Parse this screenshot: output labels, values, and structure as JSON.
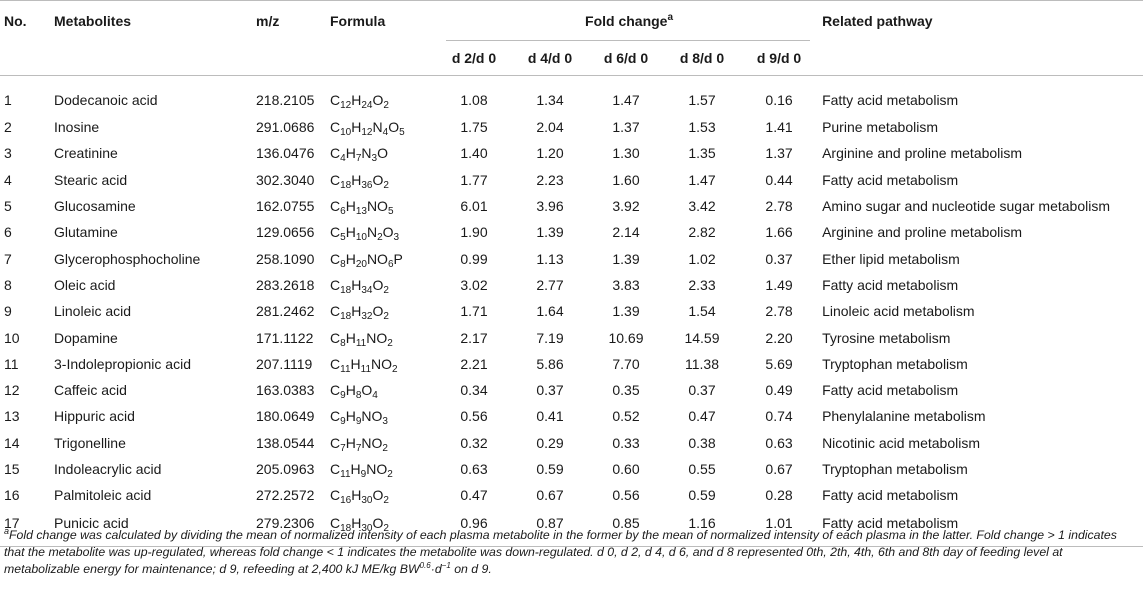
{
  "headers": {
    "no": "No.",
    "metabolites": "Metabolites",
    "mz": "m/z",
    "formula": "Formula",
    "fold_change": "Fold change",
    "fold_change_mark": "a",
    "pathway": "Related pathway",
    "sub": [
      "d 2/d 0",
      "d 4/d 0",
      "d 6/d 0",
      "d 8/d 0",
      "d 9/d 0"
    ]
  },
  "rows": [
    {
      "no": "1",
      "name": "Dodecanoic acid",
      "mz": "218.2105",
      "formula": [
        [
          "C",
          ""
        ],
        [
          "H",
          ""
        ],
        [
          "O",
          ""
        ]
      ],
      "formula_sub": [
        "12",
        "24",
        "2"
      ],
      "values": [
        "1.08",
        "1.34",
        "1.47",
        "1.57",
        "0.16"
      ],
      "pathway": "Fatty acid metabolism"
    },
    {
      "no": "2",
      "name": "Inosine",
      "mz": "291.0686",
      "formula": [
        [
          "C",
          ""
        ],
        [
          "H",
          ""
        ],
        [
          "N",
          ""
        ],
        [
          "O",
          ""
        ]
      ],
      "formula_sub": [
        "10",
        "12",
        "4",
        "5"
      ],
      "values": [
        "1.75",
        "2.04",
        "1.37",
        "1.53",
        "1.41"
      ],
      "pathway": "Purine metabolism"
    },
    {
      "no": "3",
      "name": "Creatinine",
      "mz": "136.0476",
      "formula": [
        [
          "C",
          ""
        ],
        [
          "H",
          ""
        ],
        [
          "N",
          ""
        ],
        [
          "O",
          ""
        ]
      ],
      "formula_sub": [
        "4",
        "7",
        "3",
        ""
      ],
      "values": [
        "1.40",
        "1.20",
        "1.30",
        "1.35",
        "1.37"
      ],
      "pathway": "Arginine and proline metabolism"
    },
    {
      "no": "4",
      "name": "Stearic acid",
      "mz": "302.3040",
      "formula": [
        [
          "C",
          ""
        ],
        [
          "H",
          ""
        ],
        [
          "O",
          ""
        ]
      ],
      "formula_sub": [
        "18",
        "36",
        "2"
      ],
      "values": [
        "1.77",
        "2.23",
        "1.60",
        "1.47",
        "0.44"
      ],
      "pathway": "Fatty acid metabolism"
    },
    {
      "no": "5",
      "name": "Glucosamine",
      "mz": "162.0755",
      "formula": [
        [
          "C",
          ""
        ],
        [
          "H",
          ""
        ],
        [
          "NO",
          ""
        ]
      ],
      "formula_sub": [
        "6",
        "13",
        "5"
      ],
      "values": [
        "6.01",
        "3.96",
        "3.92",
        "3.42",
        "2.78"
      ],
      "pathway": "Amino sugar and nucleotide sugar metabolism"
    },
    {
      "no": "6",
      "name": "Glutamine",
      "mz": "129.0656",
      "formula": [
        [
          "C",
          ""
        ],
        [
          "H",
          ""
        ],
        [
          "N",
          ""
        ],
        [
          "O",
          ""
        ]
      ],
      "formula_sub": [
        "5",
        "10",
        "2",
        "3"
      ],
      "values": [
        "1.90",
        "1.39",
        "2.14",
        "2.82",
        "1.66"
      ],
      "pathway": "Arginine and proline metabolism"
    },
    {
      "no": "7",
      "name": "Glycerophosphocholine",
      "mz": "258.1090",
      "formula": [
        [
          "C",
          ""
        ],
        [
          "H",
          ""
        ],
        [
          "NO",
          ""
        ],
        [
          "P",
          ""
        ]
      ],
      "formula_sub": [
        "8",
        "20",
        "6",
        ""
      ],
      "values": [
        "0.99",
        "1.13",
        "1.39",
        "1.02",
        "0.37"
      ],
      "pathway": "Ether lipid metabolism"
    },
    {
      "no": "8",
      "name": "Oleic acid",
      "mz": "283.2618",
      "formula": [
        [
          "C",
          ""
        ],
        [
          "H",
          ""
        ],
        [
          "O",
          ""
        ]
      ],
      "formula_sub": [
        "18",
        "34",
        "2"
      ],
      "values": [
        "3.02",
        "2.77",
        "3.83",
        "2.33",
        "1.49"
      ],
      "pathway": "Fatty acid metabolism"
    },
    {
      "no": "9",
      "name": "Linoleic acid",
      "mz": "281.2462",
      "formula": [
        [
          "C",
          ""
        ],
        [
          "H",
          ""
        ],
        [
          "O",
          ""
        ]
      ],
      "formula_sub": [
        "18",
        "32",
        "2"
      ],
      "values": [
        "1.71",
        "1.64",
        "1.39",
        "1.54",
        "2.78"
      ],
      "pathway": "Linoleic acid metabolism"
    },
    {
      "no": "10",
      "name": "Dopamine",
      "mz": "171.1122",
      "formula": [
        [
          "C",
          ""
        ],
        [
          "H",
          ""
        ],
        [
          "NO",
          ""
        ]
      ],
      "formula_sub": [
        "8",
        "11",
        "2"
      ],
      "values": [
        "2.17",
        "7.19",
        "10.69",
        "14.59",
        "2.20"
      ],
      "pathway": "Tyrosine metabolism"
    },
    {
      "no": "11",
      "name": "3-Indolepropionic acid",
      "mz": "207.1119",
      "formula": [
        [
          "C",
          ""
        ],
        [
          "H",
          ""
        ],
        [
          "NO",
          ""
        ]
      ],
      "formula_sub": [
        "11",
        "11",
        "2"
      ],
      "values": [
        "2.21",
        "5.86",
        "7.70",
        "11.38",
        "5.69"
      ],
      "pathway": "Tryptophan metabolism"
    },
    {
      "no": "12",
      "name": "Caffeic acid",
      "mz": "163.0383",
      "formula": [
        [
          "C",
          ""
        ],
        [
          "H",
          ""
        ],
        [
          "O",
          ""
        ]
      ],
      "formula_sub": [
        "9",
        "8",
        "4"
      ],
      "values": [
        "0.34",
        "0.37",
        "0.35",
        "0.37",
        "0.49"
      ],
      "pathway": "Fatty acid metabolism"
    },
    {
      "no": "13",
      "name": "Hippuric acid",
      "mz": "180.0649",
      "formula": [
        [
          "C",
          ""
        ],
        [
          "H",
          ""
        ],
        [
          "NO",
          ""
        ]
      ],
      "formula_sub": [
        "9",
        "9",
        "3"
      ],
      "values": [
        "0.56",
        "0.41",
        "0.52",
        "0.47",
        "0.74"
      ],
      "pathway": "Phenylalanine metabolism"
    },
    {
      "no": "14",
      "name": "Trigonelline",
      "mz": "138.0544",
      "formula": [
        [
          "C",
          ""
        ],
        [
          "H",
          ""
        ],
        [
          "NO",
          ""
        ]
      ],
      "formula_sub": [
        "7",
        "7",
        "2"
      ],
      "values": [
        "0.32",
        "0.29",
        "0.33",
        "0.38",
        "0.63"
      ],
      "pathway": "Nicotinic acid metabolism"
    },
    {
      "no": "15",
      "name": "Indoleacrylic acid",
      "mz": "205.0963",
      "formula": [
        [
          "C",
          ""
        ],
        [
          "H",
          ""
        ],
        [
          "NO",
          ""
        ]
      ],
      "formula_sub": [
        "11",
        "9",
        "2"
      ],
      "values": [
        "0.63",
        "0.59",
        "0.60",
        "0.55",
        "0.67"
      ],
      "pathway": "Tryptophan metabolism"
    },
    {
      "no": "16",
      "name": "Palmitoleic acid",
      "mz": "272.2572",
      "formula": [
        [
          "C",
          ""
        ],
        [
          "H",
          ""
        ],
        [
          "O",
          ""
        ]
      ],
      "formula_sub": [
        "16",
        "30",
        "2"
      ],
      "values": [
        "0.47",
        "0.67",
        "0.56",
        "0.59",
        "0.28"
      ],
      "pathway": "Fatty acid metabolism"
    },
    {
      "no": "17",
      "name": "Punicic acid",
      "mz": "279.2306",
      "formula": [
        [
          "C",
          ""
        ],
        [
          "H",
          ""
        ],
        [
          "O",
          ""
        ]
      ],
      "formula_sub": [
        "18",
        "30",
        "2"
      ],
      "values": [
        "0.96",
        "0.87",
        "0.85",
        "1.16",
        "1.01"
      ],
      "pathway": "Fatty acid metabolism"
    }
  ],
  "footnote": {
    "mark": "a",
    "text": "Fold change was calculated by dividing the mean of normalized intensity of each plasma metabolite in the former by the mean of normalized intensity of each plasma in the latter. Fold change > 1 indicates that the metabolite was up-regulated, whereas fold change < 1 indicates the metabolite was down-regulated. d 0, d 2, d 4, d 6, and d 8 represented 0th, 2th, 4th, 6th and 8th day of feeding level at metabolizable energy for maintenance; d 9, refeeding at 2,400 kJ ME/kg BW",
    "exp1": "0.6",
    "mid": "·d",
    "exp2": "−1",
    "tail": " on d 9."
  }
}
